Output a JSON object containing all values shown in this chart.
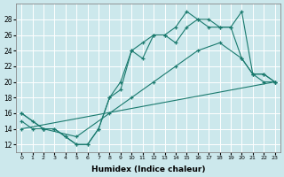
{
  "xlabel": "Humidex (Indice chaleur)",
  "background_color": "#cce8ec",
  "grid_color": "#ffffff",
  "line_color": "#1a7a6e",
  "xlim": [
    -0.5,
    23.5
  ],
  "ylim": [
    11,
    30
  ],
  "yticks": [
    12,
    14,
    16,
    18,
    20,
    22,
    24,
    26,
    28
  ],
  "xticks": [
    0,
    1,
    2,
    3,
    4,
    5,
    6,
    7,
    8,
    9,
    10,
    11,
    12,
    13,
    14,
    15,
    16,
    17,
    18,
    19,
    20,
    21,
    22,
    23
  ],
  "series": [
    {
      "x": [
        0,
        1,
        2,
        3,
        4,
        5,
        6,
        7,
        8,
        9,
        10,
        11,
        12,
        13,
        14,
        15,
        16,
        17,
        18,
        19,
        20,
        21,
        22,
        23
      ],
      "y": [
        16,
        15,
        14,
        14,
        13,
        12,
        12,
        14,
        18,
        20,
        24,
        25,
        26,
        26,
        27,
        29,
        28,
        28,
        27,
        27,
        29,
        21,
        21,
        20
      ]
    },
    {
      "x": [
        0,
        1,
        2,
        3,
        4,
        5,
        6,
        7,
        8,
        9,
        10,
        11,
        12,
        13,
        14,
        15,
        16,
        17,
        18,
        19,
        20,
        21,
        22,
        23
      ],
      "y": [
        15,
        14,
        14,
        14,
        13,
        12,
        12,
        14,
        18,
        19,
        24,
        23,
        26,
        26,
        25,
        27,
        28,
        27,
        27,
        27,
        23,
        21,
        20,
        20
      ]
    },
    {
      "x": [
        0,
        2,
        5,
        8,
        10,
        12,
        14,
        16,
        18,
        20,
        21,
        22,
        23
      ],
      "y": [
        16,
        14,
        13,
        16,
        18,
        20,
        22,
        24,
        25,
        23,
        21,
        21,
        20
      ]
    },
    {
      "x": [
        0,
        23
      ],
      "y": [
        14,
        20
      ]
    }
  ]
}
